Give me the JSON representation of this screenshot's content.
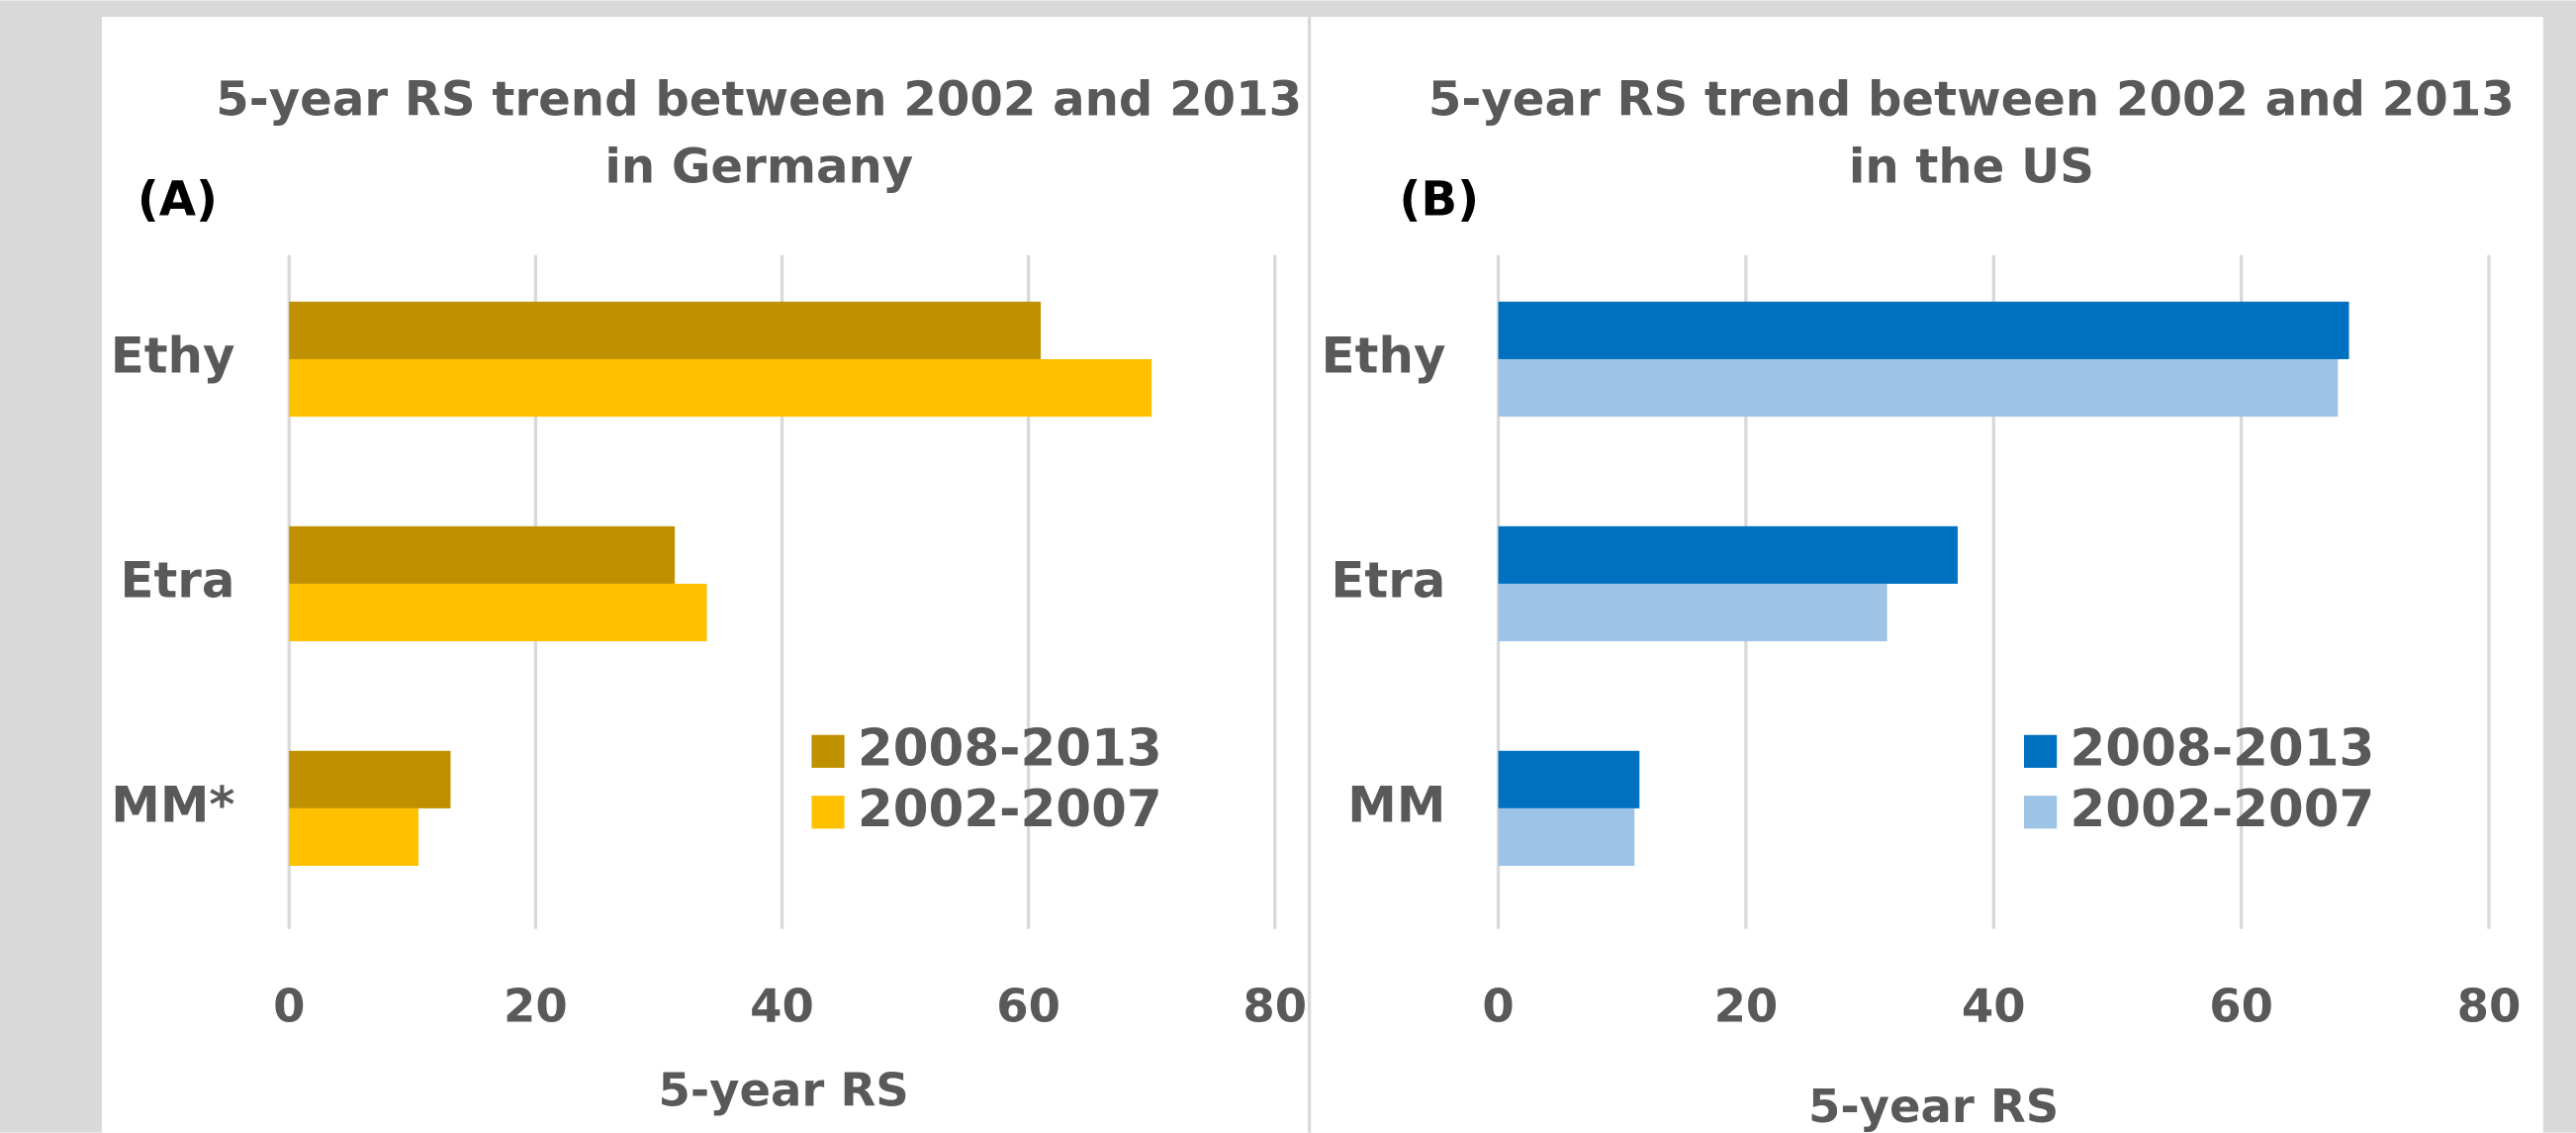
{
  "chart_data": [
    {
      "type": "bar",
      "orientation": "horizontal",
      "label": "(A)",
      "title": [
        "5-year RS trend between 2002 and 2013",
        "in Germany"
      ],
      "xlabel": "5-year RS",
      "categories": [
        "Ethy",
        "Etra",
        "MM*"
      ],
      "series": [
        {
          "name": "2008-2013",
          "color": "#bf9000",
          "values": [
            61,
            31.3,
            13.1
          ]
        },
        {
          "name": "2002-2007",
          "color": "#ffc000",
          "values": [
            70,
            33.9,
            10.5
          ]
        }
      ],
      "xlim": [
        0,
        80
      ],
      "xticks": [
        0,
        20,
        40,
        60,
        80
      ],
      "grid": true,
      "legend": "lower right"
    },
    {
      "type": "bar",
      "orientation": "horizontal",
      "label": "(B)",
      "title": [
        "5-year RS trend between 2002 and 2013",
        "in the US"
      ],
      "xlabel": "5-year RS",
      "categories": [
        "Ethy",
        "Etra",
        "MM"
      ],
      "series": [
        {
          "name": "2008-2013",
          "color": "#0070c0",
          "values": [
            68.7,
            37.1,
            11.4
          ]
        },
        {
          "name": "2002-2007",
          "color": "#9dc3e6",
          "values": [
            67.8,
            31.4,
            11
          ]
        }
      ],
      "xlim": [
        0,
        80
      ],
      "xticks": [
        0,
        20,
        40,
        60,
        80
      ],
      "grid": true,
      "legend": "lower right"
    }
  ]
}
